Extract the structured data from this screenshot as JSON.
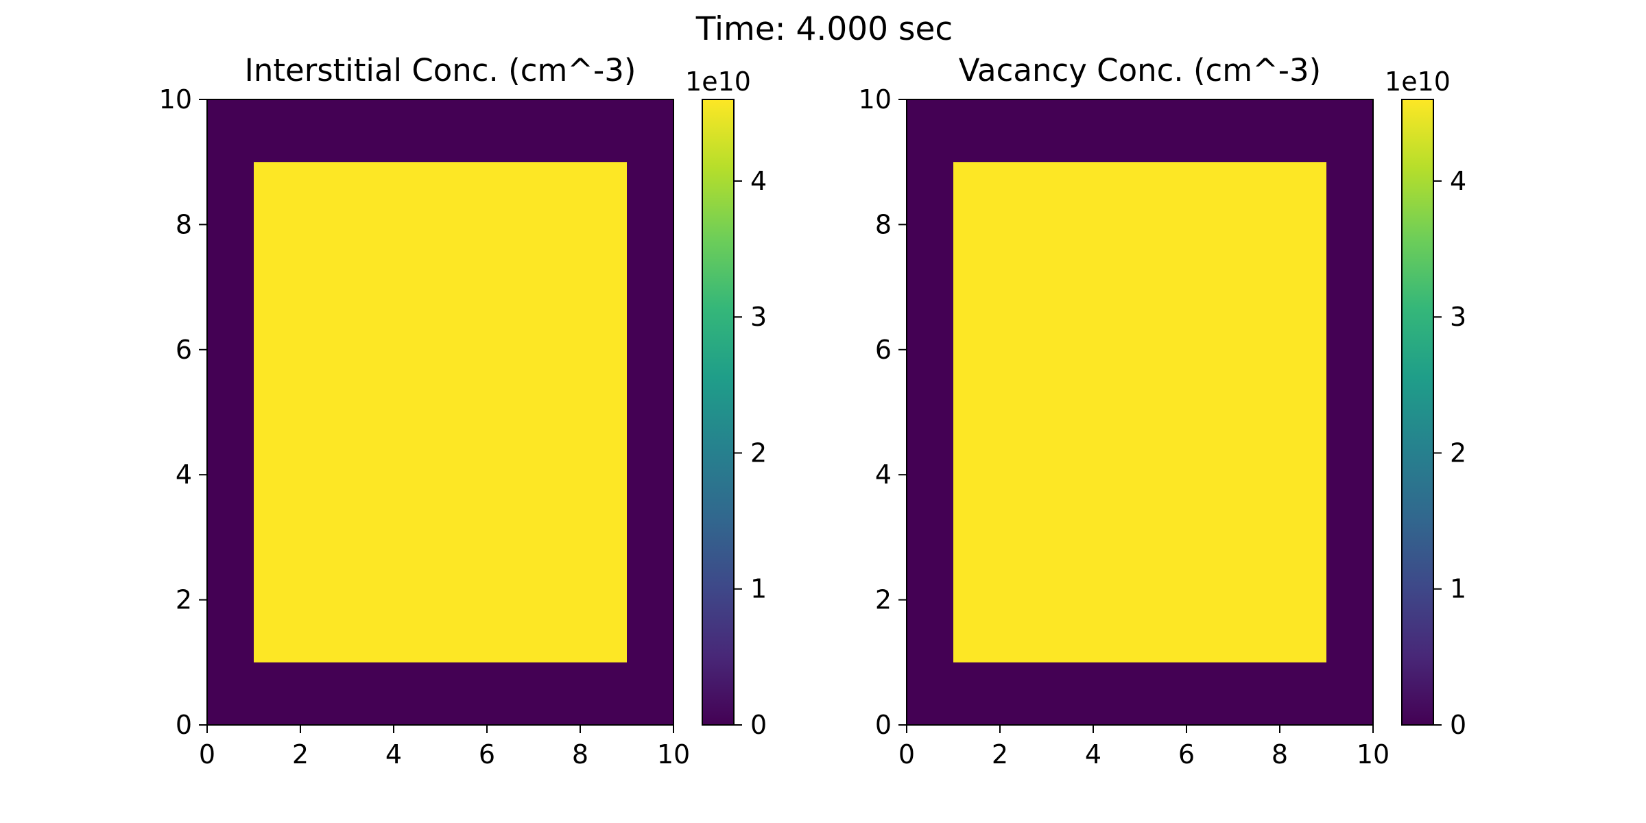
{
  "figure": {
    "suptitle": "Time: 4.000 sec"
  },
  "chart_data": [
    {
      "type": "heatmap",
      "title": "Interstitial Conc. (cm^-3)",
      "xlabel": "",
      "ylabel": "",
      "xlim": [
        0,
        10
      ],
      "ylim": [
        0,
        10
      ],
      "xticks": [
        0,
        2,
        4,
        6,
        8,
        10
      ],
      "yticks": [
        0,
        2,
        4,
        6,
        8,
        10
      ],
      "background_value": 0,
      "regions": [
        {
          "x": [
            1,
            9
          ],
          "y": [
            1,
            9
          ],
          "value": 46000000000.0
        }
      ],
      "colorbar": {
        "colormap": "viridis",
        "range": [
          0,
          46000000000.0
        ],
        "ticks": [
          0,
          1,
          2,
          3,
          4
        ],
        "offset_label": "1e10"
      }
    },
    {
      "type": "heatmap",
      "title": "Vacancy Conc. (cm^-3)",
      "xlabel": "",
      "ylabel": "",
      "xlim": [
        0,
        10
      ],
      "ylim": [
        0,
        10
      ],
      "xticks": [
        0,
        2,
        4,
        6,
        8,
        10
      ],
      "yticks": [
        0,
        2,
        4,
        6,
        8,
        10
      ],
      "background_value": 0,
      "regions": [
        {
          "x": [
            1,
            9
          ],
          "y": [
            1,
            9
          ],
          "value": 46000000000.0
        }
      ],
      "colorbar": {
        "colormap": "viridis",
        "range": [
          0,
          46000000000.0
        ],
        "ticks": [
          0,
          1,
          2,
          3,
          4
        ],
        "offset_label": "1e10"
      }
    }
  ]
}
